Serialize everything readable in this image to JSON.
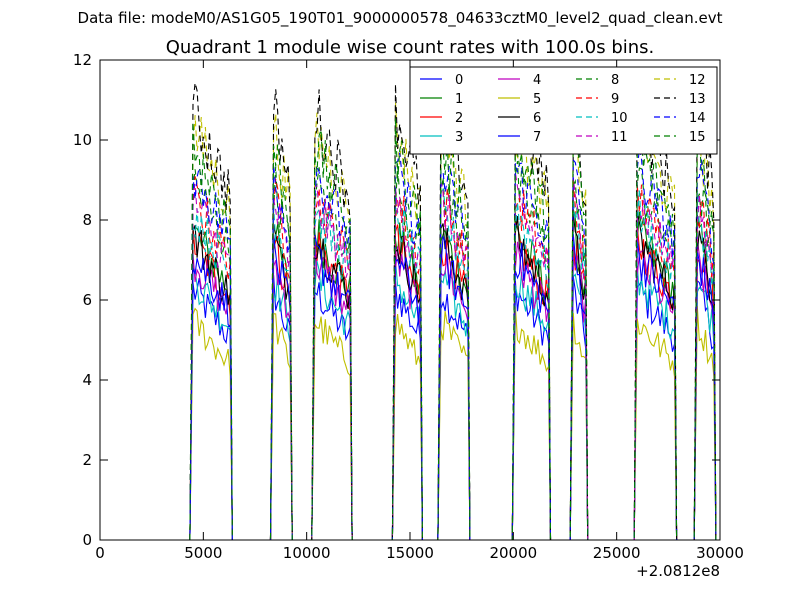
{
  "figure": {
    "suptitle": "Data file: modeM0/AS1G05_190T01_9000000578_04633cztM0_level2_quad_clean.evt"
  },
  "chart_data": {
    "type": "line",
    "title": "Quadrant 1 module wise count rates with 100.0s bins.",
    "xlabel": "",
    "ylabel": "",
    "x_offset_label": "+2.0812e8",
    "xlim": [
      0,
      30000
    ],
    "ylim": [
      0,
      12
    ],
    "xticks": [
      0,
      5000,
      10000,
      15000,
      20000,
      25000,
      30000
    ],
    "yticks": [
      0,
      2,
      4,
      6,
      8,
      10,
      12
    ],
    "grid": false,
    "legend": {
      "placement": "top-right",
      "columns": 4
    },
    "segments": [
      {
        "start": 4500,
        "end": 6300
      },
      {
        "start": 8400,
        "end": 9200
      },
      {
        "start": 10400,
        "end": 12100
      },
      {
        "start": 14300,
        "end": 15500
      },
      {
        "start": 16500,
        "end": 17800
      },
      {
        "start": 20100,
        "end": 21700
      },
      {
        "start": 22900,
        "end": 23500
      },
      {
        "start": 26000,
        "end": 27800
      },
      {
        "start": 28900,
        "end": 29700
      }
    ],
    "series": [
      {
        "name": "0",
        "color": "#0000ff",
        "dash": false,
        "level": 5.6
      },
      {
        "name": "1",
        "color": "#008000",
        "dash": false,
        "level": 6.9
      },
      {
        "name": "2",
        "color": "#ff0000",
        "dash": false,
        "level": 6.7
      },
      {
        "name": "3",
        "color": "#00bfbf",
        "dash": false,
        "level": 5.9
      },
      {
        "name": "4",
        "color": "#bf00bf",
        "dash": false,
        "level": 6.3
      },
      {
        "name": "5",
        "color": "#bfbf00",
        "dash": false,
        "level": 4.9
      },
      {
        "name": "6",
        "color": "#000000",
        "dash": false,
        "level": 6.8
      },
      {
        "name": "7",
        "color": "#0000ff",
        "dash": false,
        "level": 6.4
      },
      {
        "name": "8",
        "color": "#008000",
        "dash": true,
        "level": 8.0
      },
      {
        "name": "9",
        "color": "#ff0000",
        "dash": true,
        "level": 7.7
      },
      {
        "name": "10",
        "color": "#00bfbf",
        "dash": true,
        "level": 7.4
      },
      {
        "name": "11",
        "color": "#bf00bf",
        "dash": true,
        "level": 7.6
      },
      {
        "name": "12",
        "color": "#bfbf00",
        "dash": true,
        "level": 9.2
      },
      {
        "name": "13",
        "color": "#000000",
        "dash": true,
        "level": 9.6
      },
      {
        "name": "14",
        "color": "#0000ff",
        "dash": true,
        "level": 8.3
      },
      {
        "name": "15",
        "color": "#008000",
        "dash": true,
        "level": 8.8
      }
    ]
  }
}
